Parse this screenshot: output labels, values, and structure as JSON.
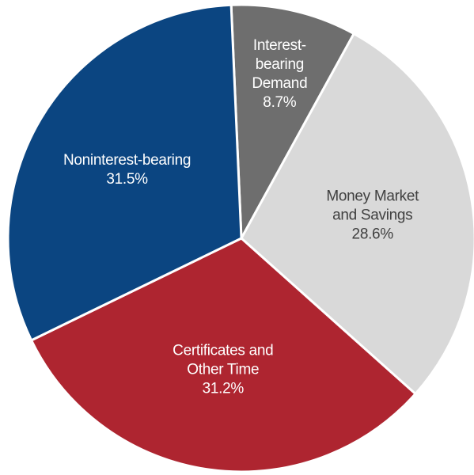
{
  "chart_data": {
    "type": "pie",
    "categories": [
      [
        "Interest-",
        "bearing",
        "Demand"
      ],
      [
        "Money Market",
        "and Savings"
      ],
      [
        "Certificates  and",
        "Other Time"
      ],
      [
        "Noninterest-bearing"
      ]
    ],
    "values": [
      8.7,
      28.6,
      31.2,
      31.5
    ],
    "value_labels": [
      "8.7%",
      "28.6%",
      "31.2%",
      "31.5%"
    ],
    "colors": [
      "#6e6e6e",
      "#d9d9d9",
      "#ae2530",
      "#0b4581"
    ],
    "label_colors": [
      "#ffffff",
      "#404040",
      "#ffffff",
      "#ffffff"
    ]
  }
}
